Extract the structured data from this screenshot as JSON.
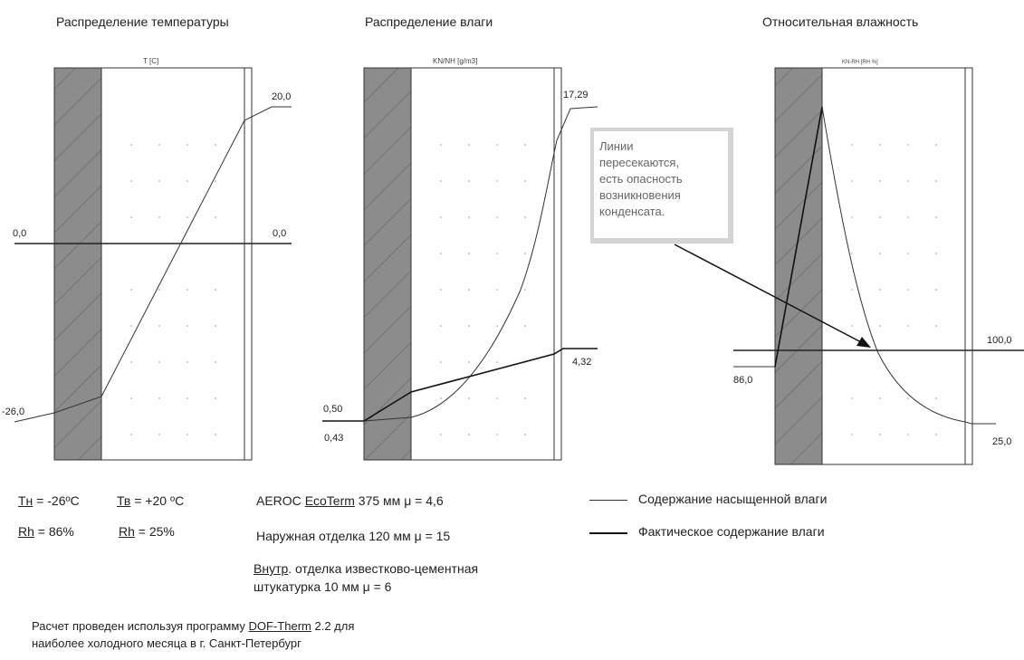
{
  "chart_data": [
    {
      "type": "line",
      "title": "Распределение температуры",
      "ylabel": "T [C]",
      "series": [
        {
          "values": [
            -26.0,
            20.0
          ]
        }
      ],
      "reference_line": {
        "left_label": "0,0",
        "right_label": "0,0",
        "value": 0.0
      },
      "end_labels": {
        "left": "-26,0",
        "right": "20,0"
      }
    },
    {
      "type": "line",
      "title": "Распределение влаги",
      "ylabel": "KN/NH [g/m3]",
      "series": [
        {
          "values": [
            0.43,
            17.29
          ]
        },
        {
          "values": [
            0.5,
            4.32
          ]
        }
      ],
      "end_labels": {
        "left_top": "0,50",
        "left_bottom": "0,43",
        "right_top": "17,29",
        "right_bottom": "4,32"
      }
    },
    {
      "type": "line",
      "title": "Относительная влажность",
      "ylabel": "KN-RH [RH %]",
      "series": [
        {
          "values": [
            86.0,
            100.0,
            25.0
          ]
        }
      ],
      "end_labels": {
        "left": "86,0",
        "right_top": "100,0",
        "right_bottom": "25,0"
      }
    }
  ],
  "callout": {
    "lines": [
      "Линии",
      "пересекаются,",
      "есть опасность",
      "возникновения",
      "конденсата."
    ]
  },
  "conditions": {
    "tn_label": "Тн",
    "tn_value": " = -26ºC",
    "tv_label": "Тв",
    "tv_value": " = +20 ºC",
    "rh1_label": "Rh",
    "rh1_value": " = 86%",
    "rh2_label": "Rh",
    "rh2_value": " = 25%"
  },
  "materials": {
    "aeroc_prefix": "AEROC ",
    "aeroc_brand": "EcoTerm",
    "aeroc_suffix": " 375 мм μ = 4,6",
    "outer": "Наружная отделка 120 мм μ = 15",
    "inner_prefix": "Внутр",
    "inner_line1_rest": ". отделка известково-цементная",
    "inner_line2": "штукатурка 10 мм μ = 6"
  },
  "legend": {
    "saturated": "Содержание насыщенной влаги",
    "actual": "Фактическое содержание влаги"
  },
  "footnote": {
    "line1_prefix": "Расчет проведен используя программу ",
    "line1_program": "DOF-Therm",
    "line1_suffix": " 2.2 для",
    "line2": "наиболее холодного месяца в г. Санкт-Петербург"
  },
  "colors": {
    "wall_fill": "#8c8c8c",
    "line": "#222222"
  }
}
